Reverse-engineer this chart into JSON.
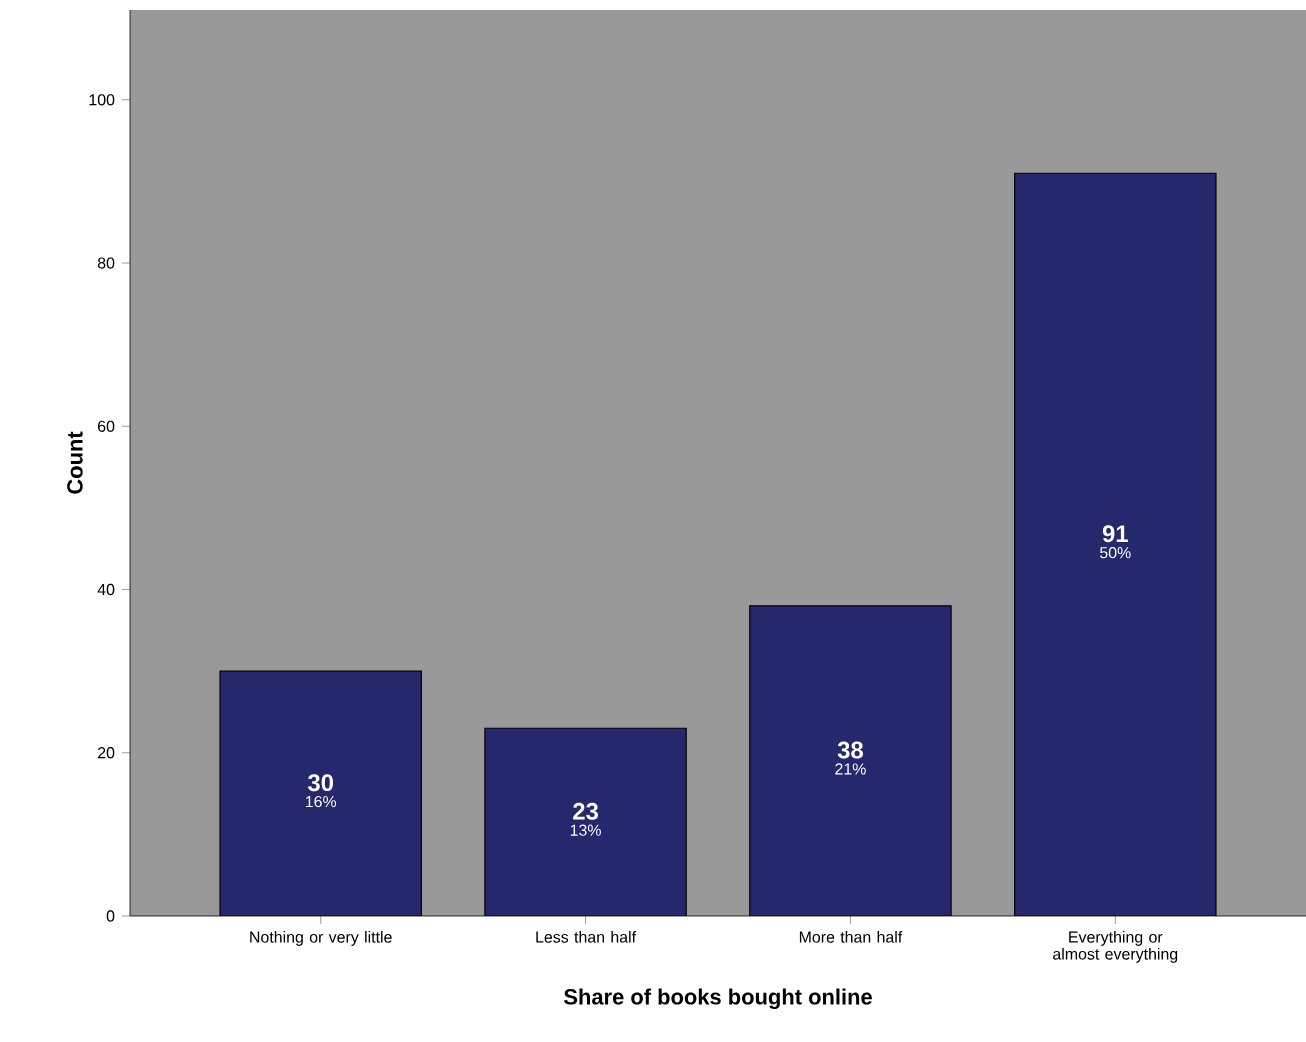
{
  "chart_data": {
    "type": "bar",
    "xlabel": "Share of books bought online",
    "ylabel": "Count",
    "categories": [
      "Nothing or very little",
      "Less than half",
      "More than half",
      "Everything or almost everything"
    ],
    "values": [
      30,
      23,
      38,
      91
    ],
    "color": "#26286e",
    "ylim": [
      0,
      111
    ],
    "yticks": [
      0,
      20,
      40,
      60,
      80,
      100
    ],
    "grid": false,
    "data_labels": true,
    "annotations": [
      "16%",
      "13%",
      "21%",
      "50%"
    ]
  }
}
